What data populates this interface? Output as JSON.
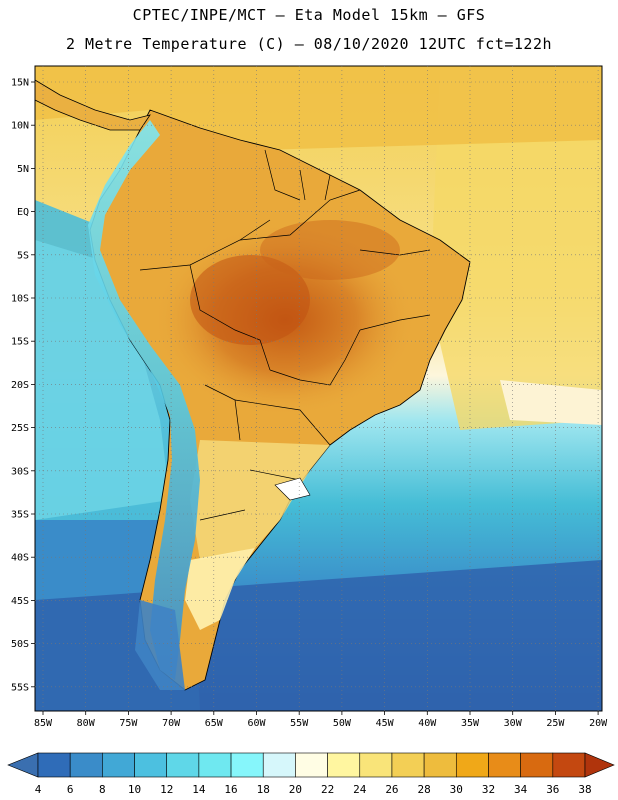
{
  "title": {
    "line1": "CPTEC/INPE/MCT –  Eta Model 15km – GFS",
    "line2": "2 Metre Temperature (C) – 08/10/2020 12UTC fct=122h"
  },
  "map": {
    "lat_labels": [
      "15N",
      "10N",
      "5N",
      "EQ",
      "5S",
      "10S",
      "15S",
      "20S",
      "25S",
      "30S",
      "35S",
      "40S",
      "45S",
      "50S",
      "55S"
    ],
    "lon_labels": [
      "85W",
      "80W",
      "75W",
      "70W",
      "65W",
      "60W",
      "55W",
      "50W",
      "45W",
      "40W",
      "35W",
      "30W",
      "25W",
      "20W"
    ],
    "grid": "dotted"
  },
  "colorbar": {
    "levels": [
      "4",
      "6",
      "8",
      "10",
      "12",
      "14",
      "16",
      "18",
      "20",
      "22",
      "24",
      "26",
      "28",
      "30",
      "32",
      "34",
      "36",
      "38"
    ],
    "colors": [
      "#3a6fb0",
      "#2f6cb8",
      "#3a8cc9",
      "#41a8d6",
      "#4cc0e0",
      "#5fd7e8",
      "#6fe8f0",
      "#86f6fb",
      "#d6f7fb",
      "#fffde4",
      "#fff6a0",
      "#f9e479",
      "#f3cf55",
      "#eebc3d",
      "#f0a818",
      "#e88c18",
      "#d86a10",
      "#c44810",
      "#b0340c"
    ]
  }
}
